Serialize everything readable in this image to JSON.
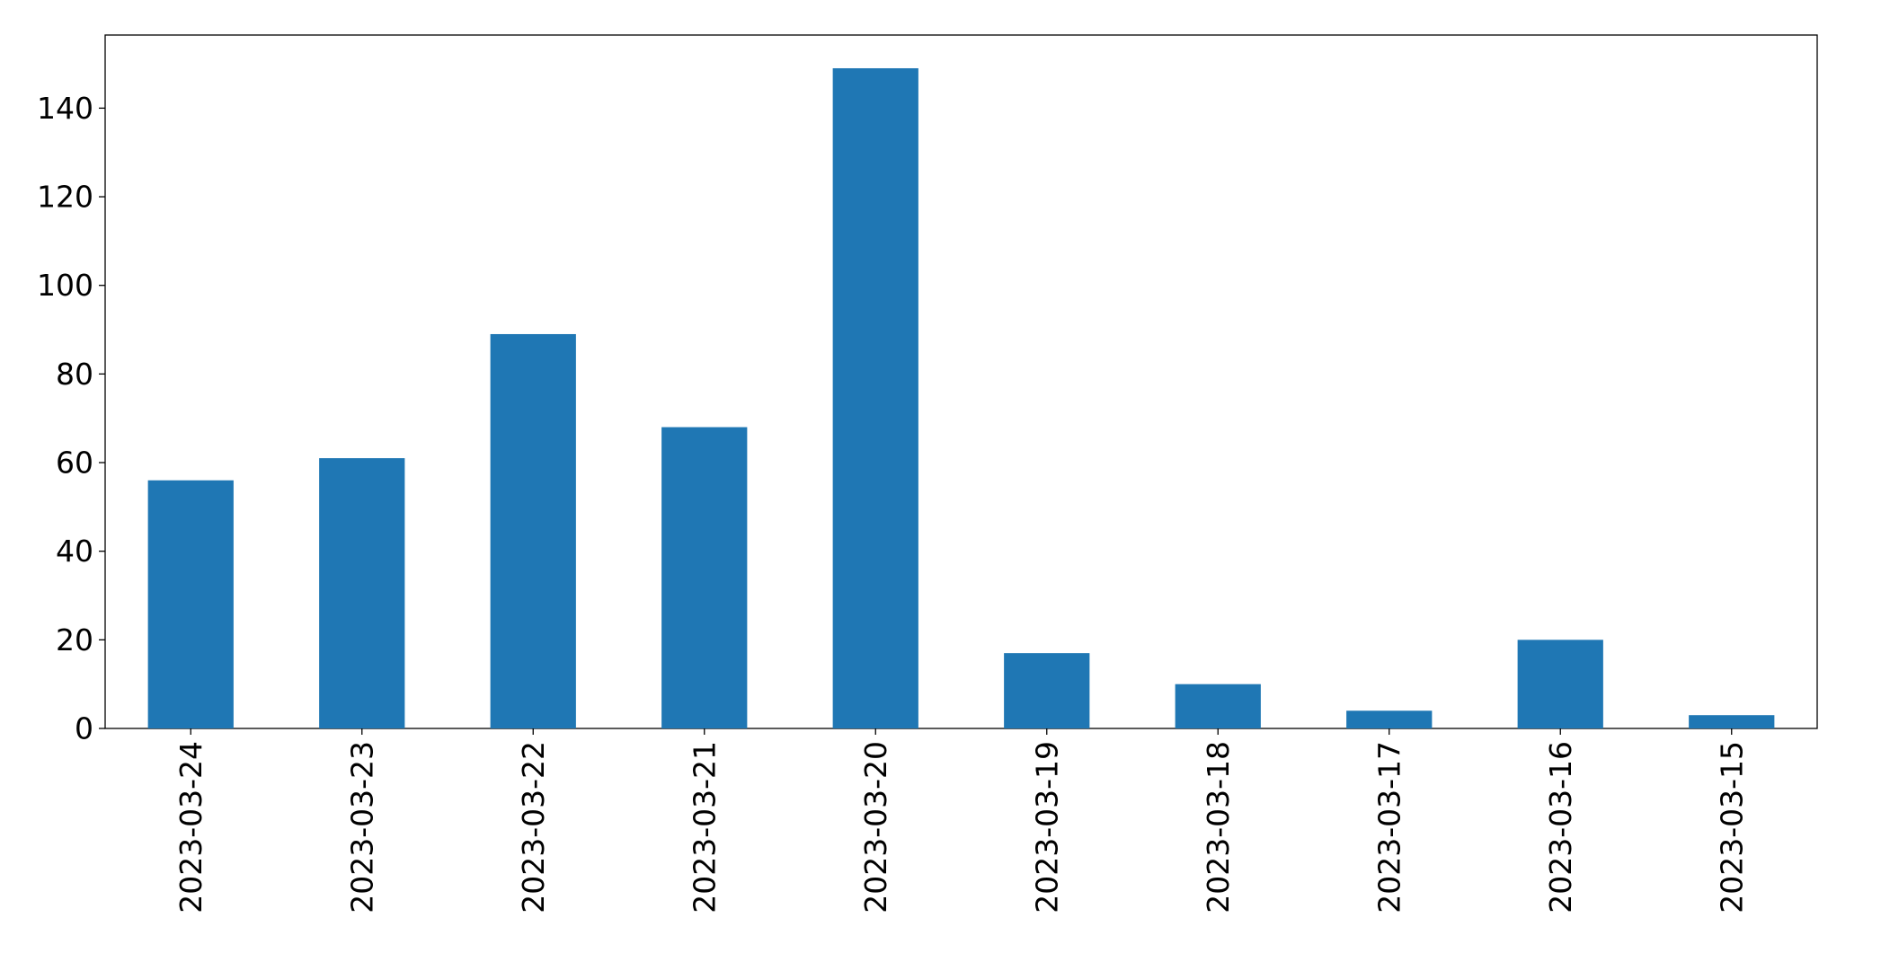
{
  "chart_data": {
    "type": "bar",
    "title": "",
    "xlabel": "",
    "ylabel": "",
    "categories": [
      "2023-03-24",
      "2023-03-23",
      "2023-03-22",
      "2023-03-21",
      "2023-03-20",
      "2023-03-19",
      "2023-03-18",
      "2023-03-17",
      "2023-03-16",
      "2023-03-15"
    ],
    "values": [
      56,
      61,
      89,
      68,
      149,
      17,
      10,
      4,
      20,
      3
    ],
    "ylim": [
      0,
      156.5
    ],
    "yticks": [
      0,
      20,
      40,
      60,
      80,
      100,
      120,
      140
    ],
    "grid": false,
    "bar_color": "#1f77b4"
  }
}
